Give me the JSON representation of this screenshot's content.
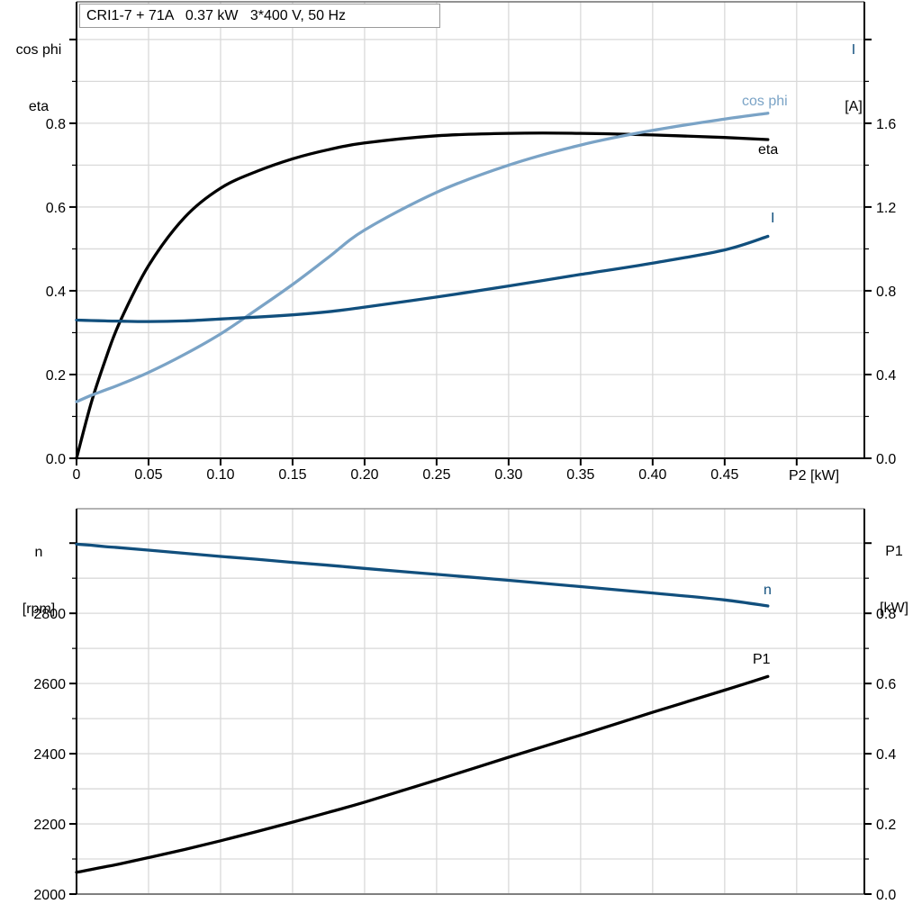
{
  "title_box": {
    "text": "CRI1-7 + 71A   0.37 kW   3*400 V, 50 Hz"
  },
  "labels": {
    "top_left_line1": "cos phi",
    "top_left_line2": "eta",
    "top_right_line1": "I",
    "top_right_line2": "[A]",
    "x_axis_title": "P2 [kW]",
    "bottom_left_line1": "n",
    "bottom_left_line2": "[rpm]",
    "bottom_right_line1": "P1",
    "bottom_right_line2": "[kW]"
  },
  "colors": {
    "black": "#000000",
    "light_blue": "#7aa3c6",
    "dark_blue": "#114f7d",
    "grid": "#d9d9d9",
    "frame_top1": "#6f6f6f",
    "frame_top2": "#9a9a9a",
    "frame_bottom2": "#7f7f7f",
    "box_border": "#9a9a9a"
  },
  "chart_data": [
    {
      "type": "line",
      "title": "CRI1-7 + 71A   0.37 kW   3*400 V, 50 Hz",
      "xlabel": "P2 [kW]",
      "ylabel_left": "cos phi / eta",
      "ylabel_right": "I [A]",
      "xlim": [
        0,
        0.547
      ],
      "ylim_left": [
        0,
        1.09
      ],
      "ylim_right": [
        0,
        2.18
      ],
      "grid": true,
      "legend": "inline-curve-labels",
      "x_tick_values": [
        0,
        0.05,
        0.1,
        0.15,
        0.2,
        0.25,
        0.3,
        0.35,
        0.4,
        0.45
      ],
      "x_tick_labels": [
        "0",
        "0.05",
        "0.10",
        "0.15",
        "0.20",
        "0.25",
        "0.30",
        "0.35",
        "0.40",
        "0.45"
      ],
      "y_left_tick_values": [
        0,
        0.2,
        0.4,
        0.6,
        0.8
      ],
      "y_left_tick_labels": [
        "0.0",
        "0.2",
        "0.4",
        "0.6",
        "0.8"
      ],
      "y_right_tick_values": [
        0,
        0.4,
        0.8,
        1.2,
        1.6
      ],
      "y_right_tick_labels": [
        "0.0",
        "0.4",
        "0.8",
        "1.2",
        "1.6"
      ],
      "x": [
        0,
        0.01,
        0.02,
        0.03,
        0.05,
        0.075,
        0.1,
        0.125,
        0.15,
        0.175,
        0.2,
        0.25,
        0.3,
        0.35,
        0.4,
        0.45,
        0.48
      ],
      "series": [
        {
          "name": "eta",
          "axis": "left",
          "color": "#000000",
          "values": [
            0,
            0.13,
            0.235,
            0.325,
            0.46,
            0.575,
            0.645,
            0.685,
            0.715,
            0.737,
            0.753,
            0.77,
            0.776,
            0.776,
            0.772,
            0.766,
            0.761
          ]
        },
        {
          "name": "cos phi",
          "axis": "left",
          "color": "#7aa3c6",
          "values": [
            0.135,
            0.15,
            0.163,
            0.176,
            0.205,
            0.248,
            0.297,
            0.355,
            0.415,
            0.48,
            0.545,
            0.635,
            0.7,
            0.748,
            0.783,
            0.81,
            0.824
          ]
        },
        {
          "name": "I",
          "axis": "right",
          "color": "#114f7d",
          "values": [
            0.66,
            0.658,
            0.656,
            0.655,
            0.653,
            0.656,
            0.665,
            0.674,
            0.685,
            0.7,
            0.722,
            0.77,
            0.823,
            0.878,
            0.932,
            0.995,
            1.06
          ]
        }
      ]
    },
    {
      "type": "line",
      "title": "",
      "xlabel": "",
      "ylabel_left": "n [rpm]",
      "ylabel_right": "P1 [kW]",
      "xlim": [
        0,
        0.547
      ],
      "ylim_left": [
        2000,
        3098
      ],
      "ylim_right": [
        0,
        1.098
      ],
      "grid": true,
      "legend": "inline-curve-labels",
      "x_tick_values": [],
      "x_tick_labels": [],
      "y_left_tick_values": [
        2000,
        2200,
        2400,
        2600,
        2800
      ],
      "y_left_tick_labels": [
        "2000",
        "2200",
        "2400",
        "2600",
        "2800"
      ],
      "y_right_tick_values": [
        0,
        0.2,
        0.4,
        0.6,
        0.8
      ],
      "y_right_tick_labels": [
        "0.0",
        "0.2",
        "0.4",
        "0.6",
        "0.8"
      ],
      "x": [
        0,
        0.01,
        0.02,
        0.03,
        0.05,
        0.075,
        0.1,
        0.125,
        0.15,
        0.175,
        0.2,
        0.25,
        0.3,
        0.35,
        0.4,
        0.45,
        0.48
      ],
      "series": [
        {
          "name": "n",
          "axis": "left",
          "color": "#114f7d",
          "values": [
            2997,
            2994,
            2990,
            2987,
            2980,
            2971,
            2962,
            2954,
            2945,
            2937,
            2928,
            2911,
            2894,
            2876,
            2858,
            2838,
            2821
          ]
        },
        {
          "name": "P1",
          "axis": "right",
          "color": "#000000",
          "values": [
            0.062,
            0.07,
            0.078,
            0.086,
            0.104,
            0.127,
            0.152,
            0.178,
            0.205,
            0.233,
            0.262,
            0.325,
            0.39,
            0.453,
            0.518,
            0.581,
            0.62
          ]
        }
      ]
    }
  ]
}
